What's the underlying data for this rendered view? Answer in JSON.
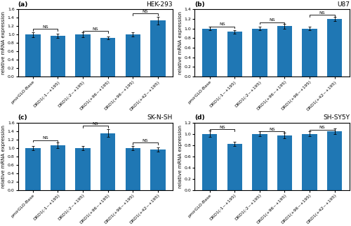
{
  "chart_data": [
    {
      "type": "bar",
      "title": "HEK-293",
      "subtitle": "(a)",
      "y_label": "relative mRNA expression",
      "categories": [
        "pmirGLO-Base",
        "DRD1(-1~+195)",
        "DRD1(-2~+195)",
        "DRD1(+96~+195)",
        "DRD1(+96~+195)",
        "DRD1(+42~+195)"
      ],
      "values": [
        1.0,
        0.97,
        1.0,
        0.92,
        1.0,
        1.33
      ],
      "errors": [
        0.06,
        0.05,
        0.06,
        0.04,
        0.05,
        0.09
      ],
      "ylim": [
        0.0,
        1.6
      ],
      "yticks": [
        0.0,
        0.2,
        0.4,
        0.6,
        0.8,
        1.0,
        1.2,
        1.4,
        1.6
      ],
      "annotations": [
        {
          "text": "NS",
          "from": 0,
          "to": 1,
          "y": 1.13
        },
        {
          "text": "NS",
          "from": 2,
          "to": 3,
          "y": 1.08
        },
        {
          "text": "NS",
          "from": 4,
          "to": 5,
          "y": 1.5
        }
      ],
      "grid": false
    },
    {
      "type": "bar",
      "title": "U87",
      "subtitle": "(b)",
      "y_label": "relative mRNA expression",
      "categories": [
        "pmirGLO-Base",
        "DRD1(-1~+195)",
        "DRD1(-2~+195)",
        "DRD1(+96~+195)",
        "DRD1(+96~+195)",
        "DRD1(+42~+195)"
      ],
      "values": [
        1.0,
        0.93,
        1.0,
        1.05,
        1.0,
        1.2
      ],
      "errors": [
        0.04,
        0.04,
        0.04,
        0.05,
        0.04,
        0.04
      ],
      "ylim": [
        0.0,
        1.4
      ],
      "yticks": [
        0.0,
        0.2,
        0.4,
        0.6,
        0.8,
        1.0,
        1.2,
        1.4
      ],
      "annotations": [
        {
          "text": "NS",
          "from": 0,
          "to": 1,
          "y": 1.04
        },
        {
          "text": "NS",
          "from": 2,
          "to": 3,
          "y": 1.13
        },
        {
          "text": "NS",
          "from": 4,
          "to": 5,
          "y": 1.28
        }
      ],
      "grid": false
    },
    {
      "type": "bar",
      "title": "SK-N-SH",
      "subtitle": "(c)",
      "y_label": "relative mRNA expression",
      "categories": [
        "pmirGLO-Base",
        "DRD1(-1~+195)",
        "DRD1(-2~+195)",
        "DRD1(+96~+195)",
        "DRD1(+96~+195)",
        "DRD1(+42~+195)"
      ],
      "values": [
        1.0,
        1.06,
        1.0,
        1.35,
        1.0,
        0.96
      ],
      "errors": [
        0.05,
        0.06,
        0.05,
        0.09,
        0.05,
        0.05
      ],
      "ylim": [
        0.0,
        1.6
      ],
      "yticks": [
        0.0,
        0.2,
        0.4,
        0.6,
        0.8,
        1.0,
        1.2,
        1.4,
        1.6
      ],
      "annotations": [
        {
          "text": "NS",
          "from": 0,
          "to": 1,
          "y": 1.18
        },
        {
          "text": "NS",
          "from": 2,
          "to": 3,
          "y": 1.52
        },
        {
          "text": "NS",
          "from": 4,
          "to": 5,
          "y": 1.12
        }
      ],
      "grid": false
    },
    {
      "type": "bar",
      "title": "SH-SY5Y",
      "subtitle": "(d)",
      "y_label": "relative mRNA expression",
      "categories": [
        "pmirGLO-Base",
        "DRD1(-1~+195)",
        "DRD1(-2~+195)",
        "DRD1(+96~+195)",
        "DRD1(+96~+195)",
        "DRD1(+42~+195)"
      ],
      "values": [
        1.0,
        0.82,
        1.0,
        0.97,
        1.0,
        1.04
      ],
      "errors": [
        0.06,
        0.04,
        0.04,
        0.05,
        0.04,
        0.05
      ],
      "ylim": [
        0.0,
        1.2
      ],
      "yticks": [
        0.0,
        0.2,
        0.4,
        0.6,
        0.8,
        1.0,
        1.2
      ],
      "annotations": [
        {
          "text": "NS",
          "from": 0,
          "to": 1,
          "y": 1.08
        },
        {
          "text": "NS",
          "from": 2,
          "to": 3,
          "y": 1.04
        },
        {
          "text": "NS",
          "from": 4,
          "to": 5,
          "y": 1.07
        }
      ],
      "grid": false
    }
  ]
}
